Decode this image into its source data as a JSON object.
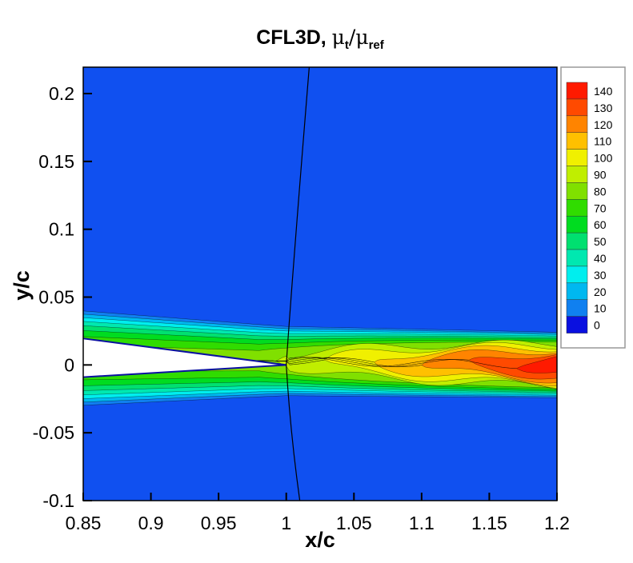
{
  "chart_data": {
    "type": "contour",
    "title": "CFL3D, ",
    "title_symbol": "μ",
    "title_sub1": "t",
    "title_sep": "/μ",
    "title_sub2": "ref",
    "xlabel": "x/c",
    "ylabel": "y/c",
    "xlim": [
      0.85,
      1.2
    ],
    "ylim": [
      -0.1,
      0.22
    ],
    "xticks": [
      "0.85",
      "0.9",
      "0.95",
      "1",
      "1.05",
      "1.1",
      "1.15",
      "1.2"
    ],
    "yticks": [
      "-0.1",
      "-0.05",
      "0",
      "0.05",
      "0.1",
      "0.15",
      "0.2"
    ],
    "legend": {
      "placement": "right",
      "levels": [
        "140",
        "130",
        "120",
        "110",
        "100",
        "90",
        "80",
        "70",
        "60",
        "50",
        "40",
        "30",
        "20",
        "10",
        "0"
      ],
      "colors": [
        "#ff1a00",
        "#ff4a00",
        "#ff8400",
        "#ffc000",
        "#f0f000",
        "#c0ee00",
        "#80e000",
        "#30dc00",
        "#00dc20",
        "#00e070",
        "#00e8b0",
        "#00eeee",
        "#00b8f0",
        "#1080f0",
        "#1050f0",
        "#0a10e0"
      ]
    }
  }
}
